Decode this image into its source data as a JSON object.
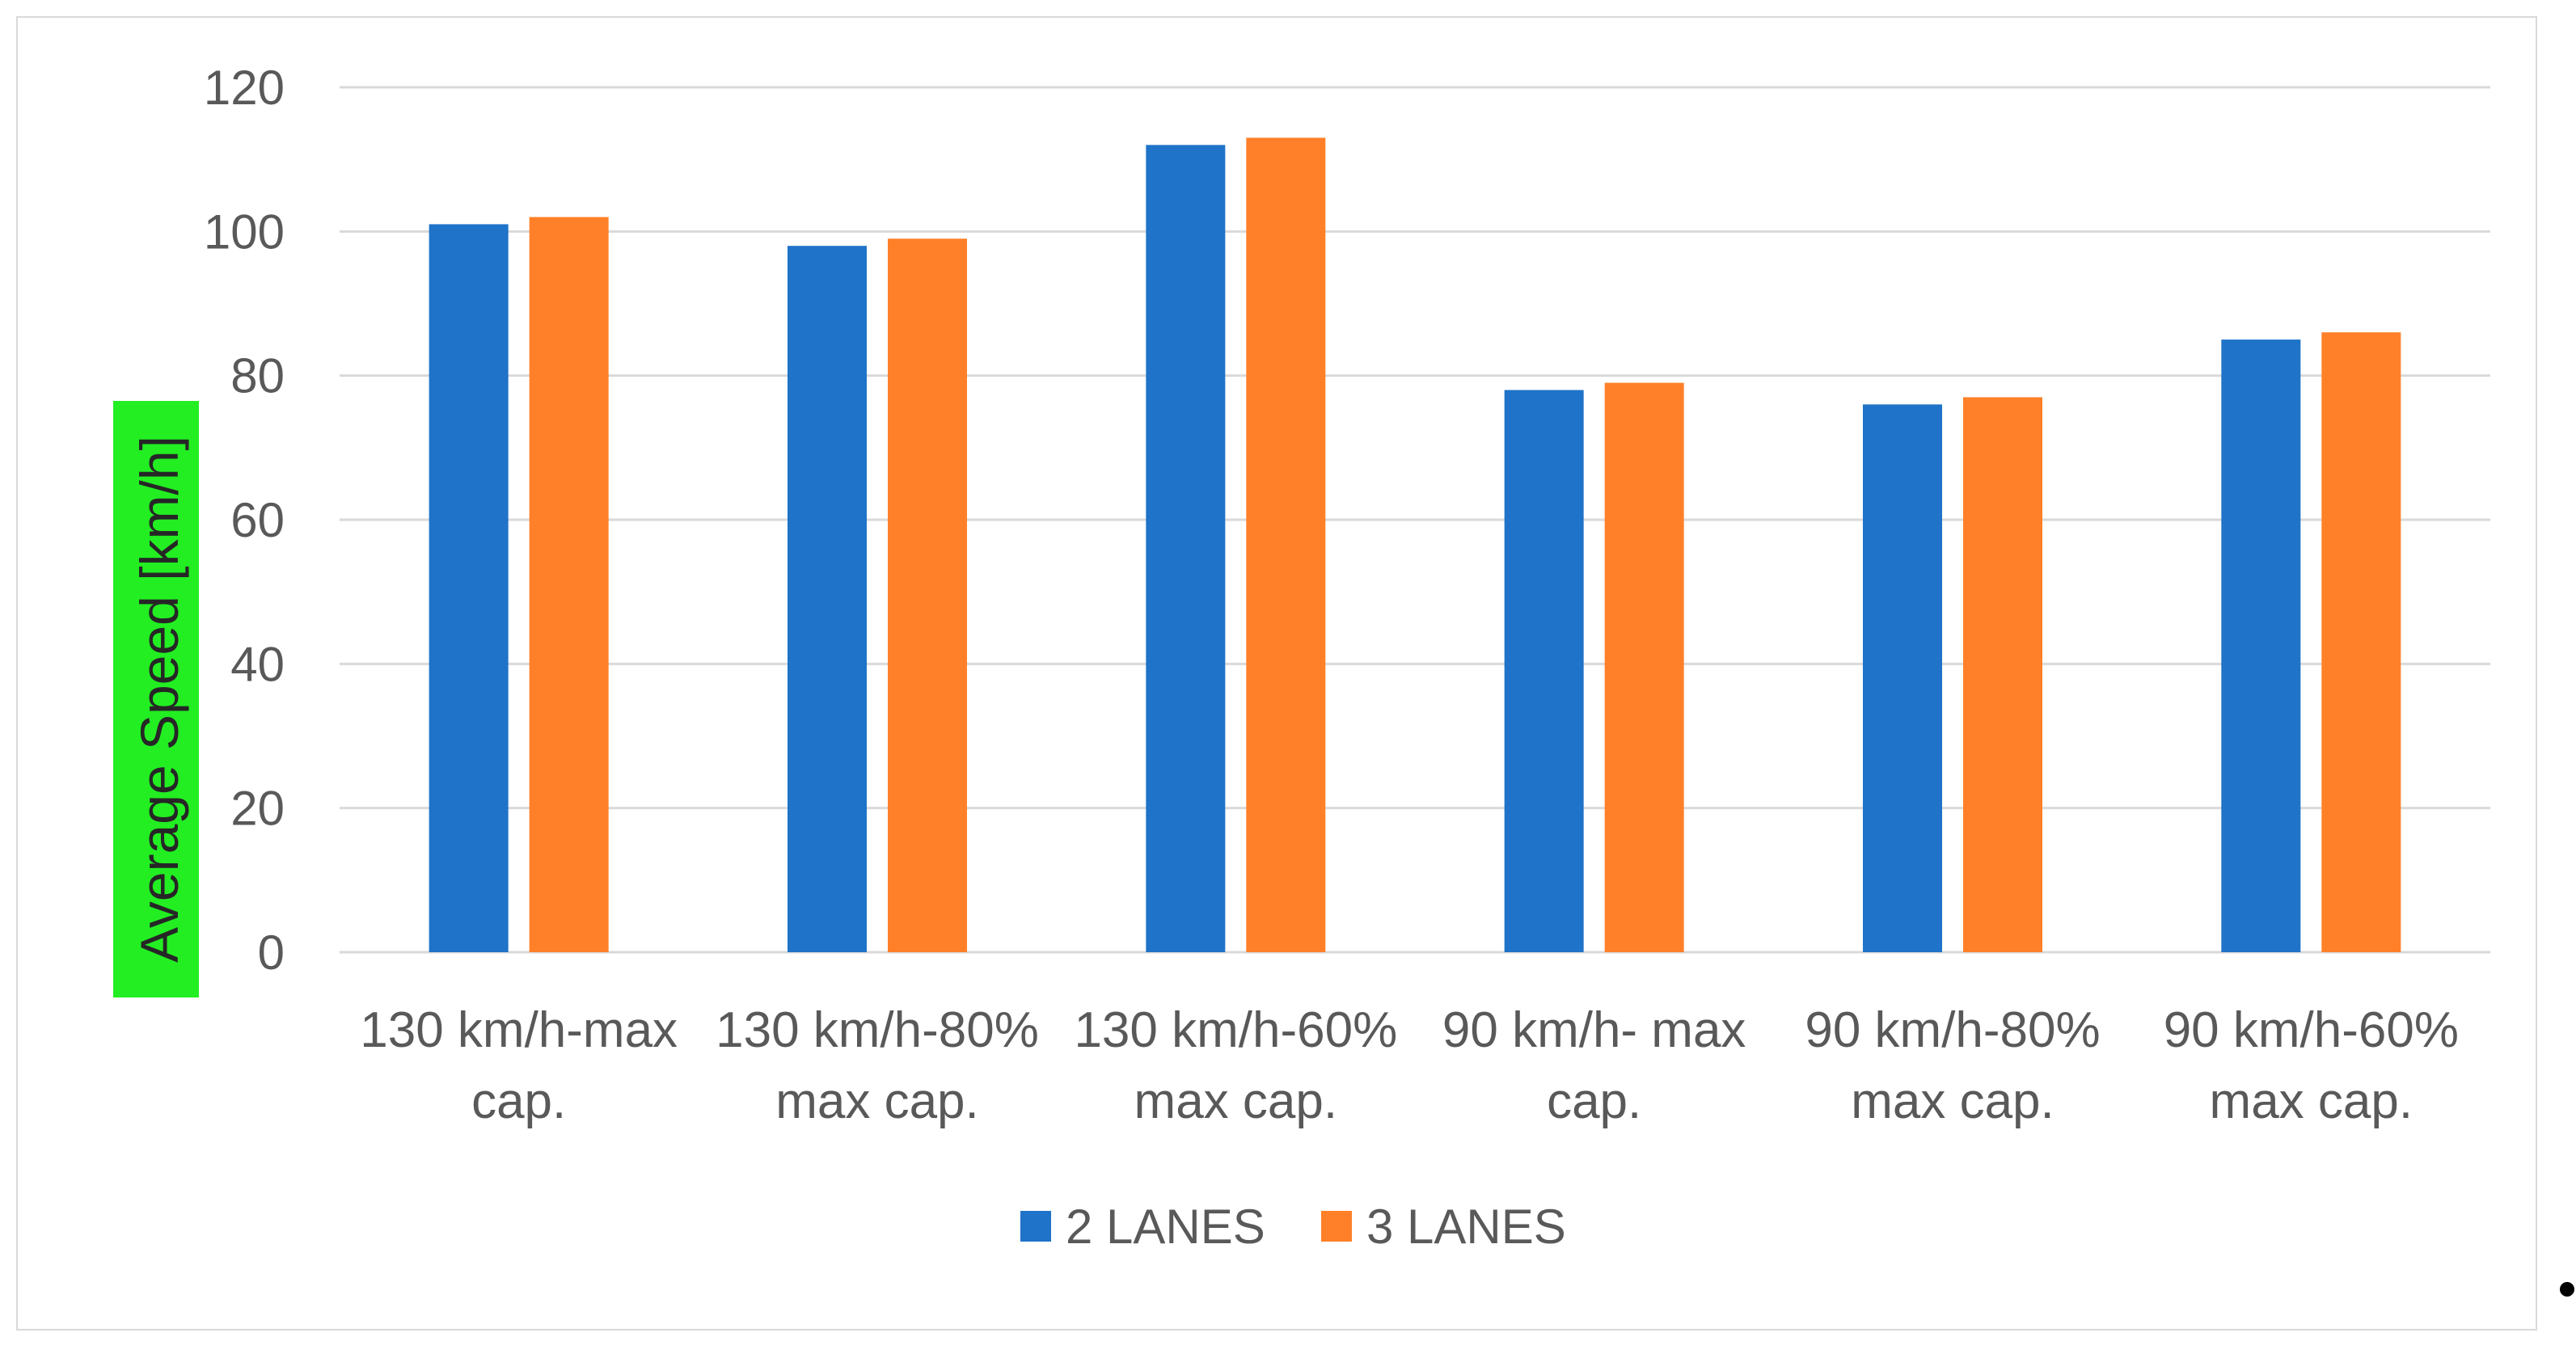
{
  "colors": {
    "series_2_lanes": "#1f73c8",
    "series_3_lanes": "#ff8028",
    "ylabel_highlight": "#22ee22",
    "gridline": "#d9d9d9"
  },
  "chart_data": {
    "type": "bar",
    "title": "",
    "xlabel": "",
    "ylabel": "Average Speed [km/h]",
    "ylim": [
      0,
      120
    ],
    "yticks": [
      0,
      20,
      40,
      60,
      80,
      100,
      120
    ],
    "grid": true,
    "legend_position": "bottom",
    "categories": [
      [
        "130 km/h-max",
        "cap."
      ],
      [
        "130 km/h-80%",
        "max cap."
      ],
      [
        "130 km/h-60%",
        "max cap."
      ],
      [
        "90 km/h- max",
        "cap."
      ],
      [
        "90 km/h-80%",
        "max cap."
      ],
      [
        "90 km/h-60%",
        "max cap."
      ]
    ],
    "series": [
      {
        "name": "2 LANES",
        "values": [
          101,
          98,
          112,
          78,
          76,
          85
        ]
      },
      {
        "name": "3 LANES",
        "values": [
          102,
          99,
          113,
          79,
          77,
          86
        ]
      }
    ]
  }
}
